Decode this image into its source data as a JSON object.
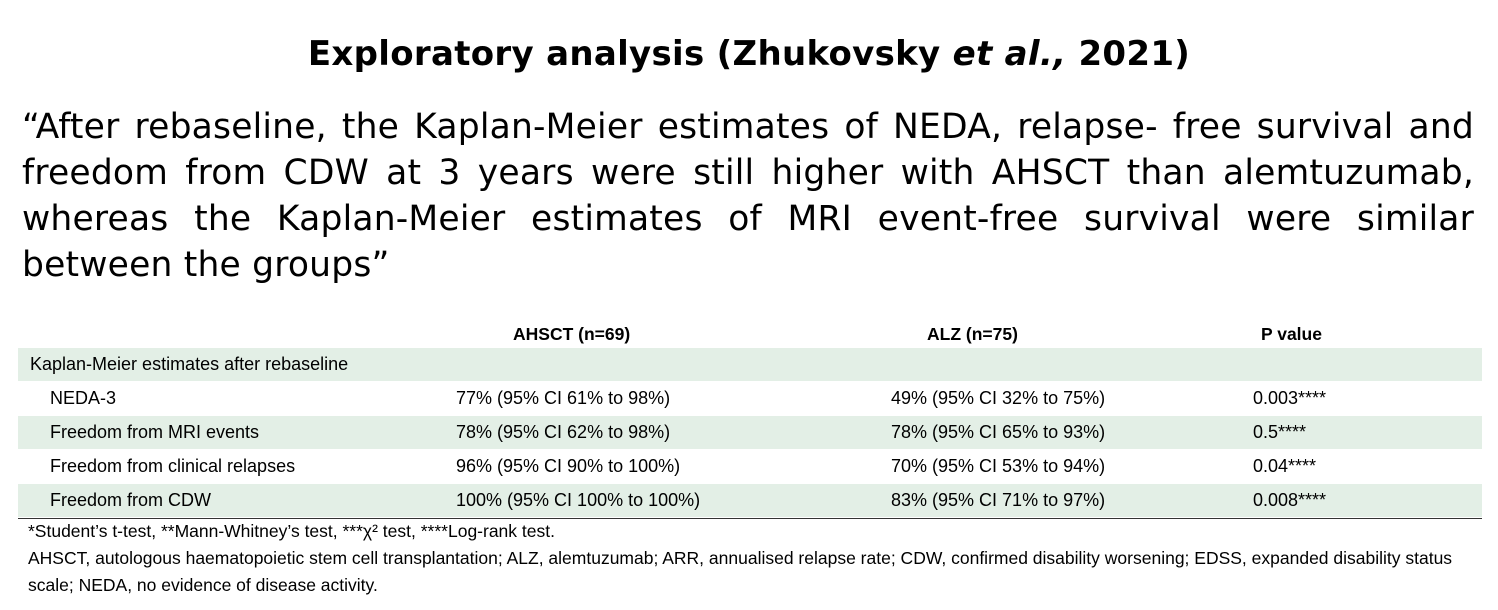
{
  "title": {
    "prefix": "Exploratory analysis (Zhukovsky ",
    "italic": "et al.,",
    "suffix": " 2021)"
  },
  "quote": "“After rebaseline, the Kaplan-Meier estimates of NEDA, relapse- free survival and freedom from CDW at 3 years were still higher with AHSCT than alemtuzumab, whereas the Kaplan-Meier estimates of MRI event-free survival were similar between the groups”",
  "table": {
    "headers": [
      "",
      "AHSCT (n=69)",
      "ALZ (n=75)",
      "P value"
    ],
    "section_label": "Kaplan-Meier estimates after rebaseline",
    "rows": [
      {
        "label": "NEDA-3",
        "ahsct": "77% (95% CI 61% to 98%)",
        "alz": "49% (95% CI 32% to 75%)",
        "p": "0.003****"
      },
      {
        "label": "Freedom from MRI events",
        "ahsct": "78% (95% CI 62% to 98%)",
        "alz": "78% (95% CI 65% to 93%)",
        "p": "0.5****"
      },
      {
        "label": "Freedom from clinical relapses",
        "ahsct": "96% (95% CI 90% to 100%)",
        "alz": "70% (95% CI 53% to 94%)",
        "p": "0.04****"
      },
      {
        "label": "Freedom from CDW",
        "ahsct": "100% (95% CI 100% to 100%)",
        "alz": "83% (95% CI 71% to 97%)",
        "p": "0.008****"
      }
    ],
    "row_shade_color": "#e3efe6"
  },
  "footnotes": {
    "tests": "*Student’s t-test, **Mann-Whitney’s test, ***χ² test, ****Log-rank test.",
    "abbreviations": "AHSCT, autologous haematopoietic stem cell transplantation; ALZ, alemtuzumab; ARR, annualised relapse rate; CDW, confirmed disability worsening; EDSS, expanded disability status scale; NEDA, no evidence of disease activity."
  }
}
